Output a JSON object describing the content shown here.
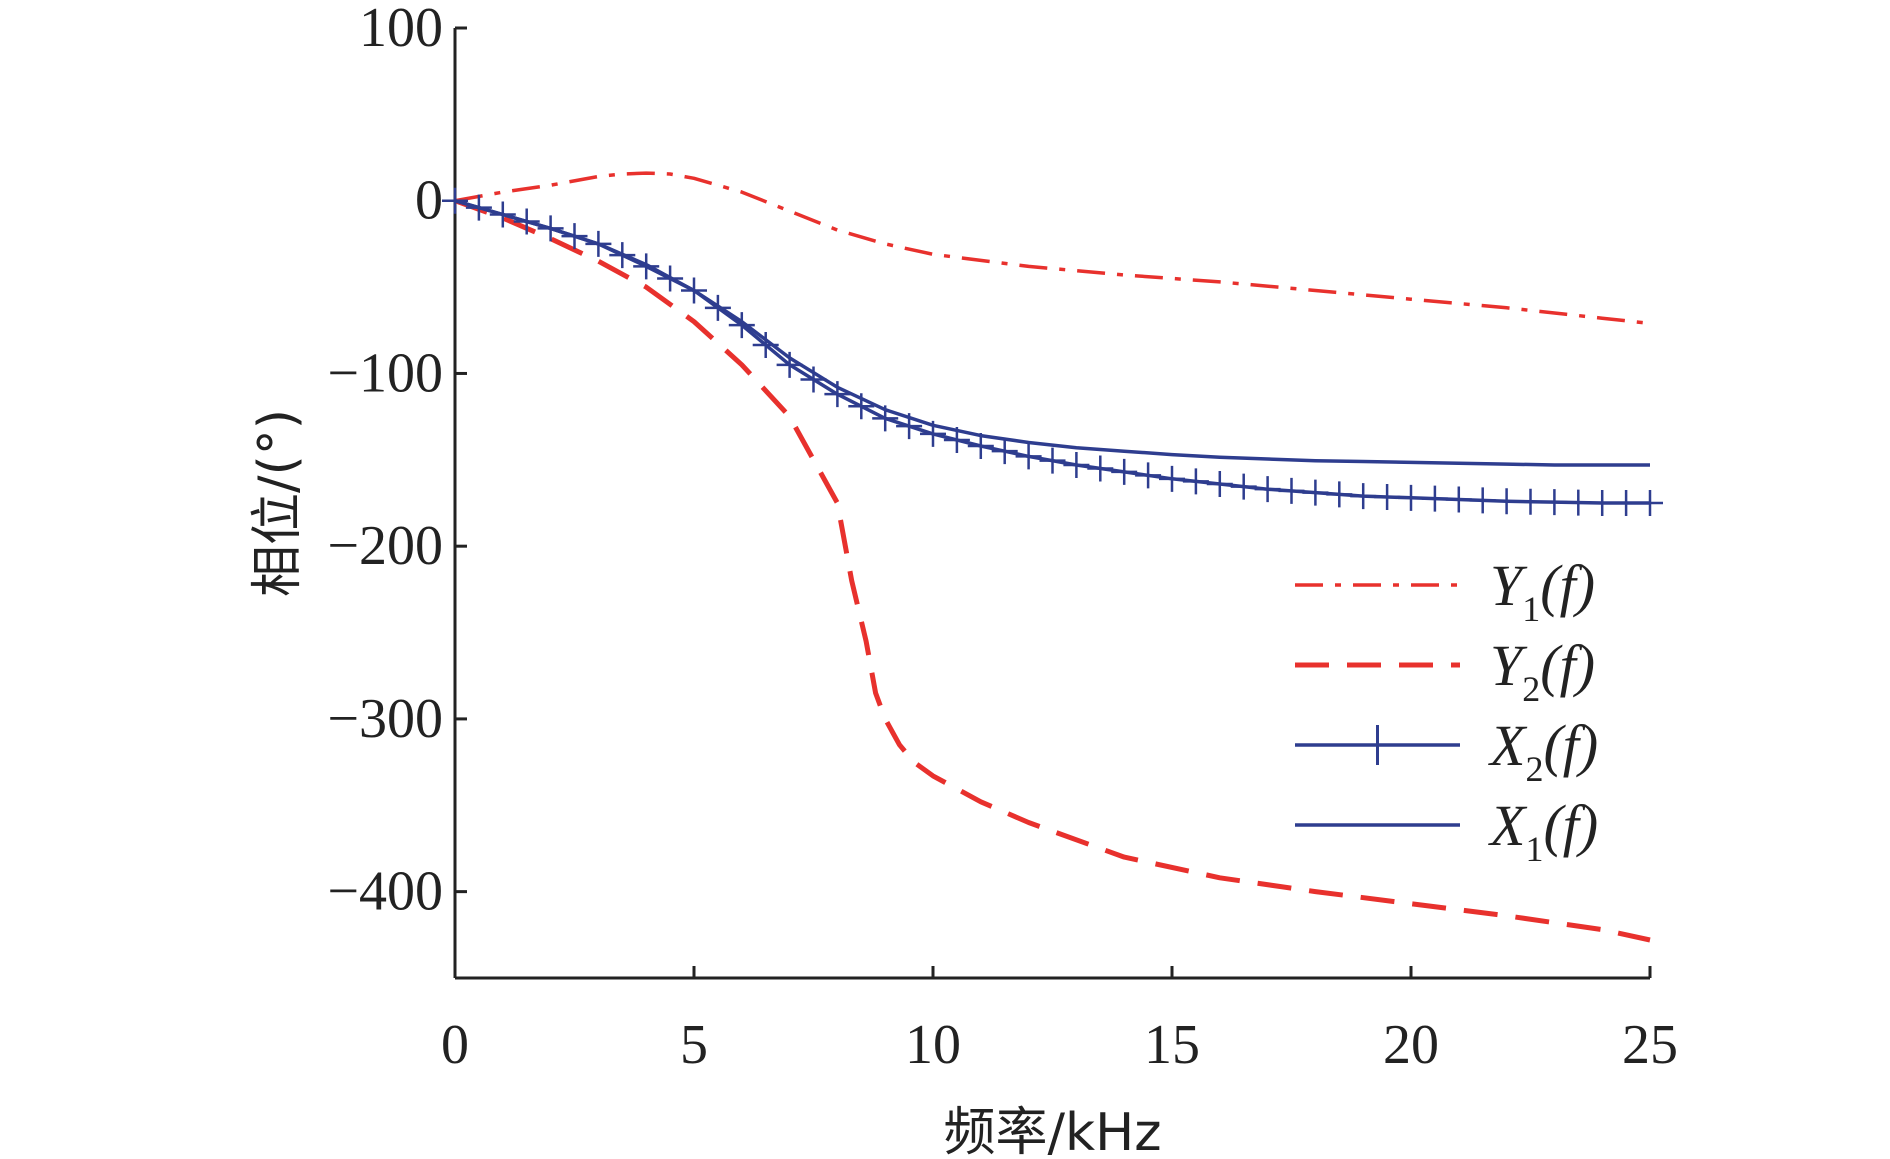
{
  "chart_data": {
    "type": "line",
    "title": "",
    "xlabel": "频率/kHz",
    "ylabel": "相位/(°)",
    "xlim": [
      0,
      25
    ],
    "ylim": [
      -450,
      100
    ],
    "xticks": [
      0,
      5,
      10,
      15,
      20,
      25
    ],
    "yticks": [
      100,
      0,
      -100,
      -200,
      -300,
      -400
    ],
    "xtick_labels": [
      "0",
      "5",
      "10",
      "15",
      "20",
      "25"
    ],
    "ytick_labels": [
      "100",
      "0",
      "−100",
      "−200",
      "−300",
      "−400"
    ],
    "grid": false,
    "legend_position": "right",
    "series": [
      {
        "name": "Y1(f)",
        "label_main": "Y",
        "label_sub": "1",
        "label_rest": "(f)",
        "style": "dashdot",
        "color": "#e8312d",
        "x": [
          0,
          1,
          2,
          3,
          3.5,
          4,
          4.5,
          5,
          6,
          7,
          8,
          9,
          10,
          12,
          14,
          16,
          18,
          20,
          22,
          24,
          25
        ],
        "y": [
          0,
          5,
          9,
          14,
          15.5,
          16,
          15.5,
          13,
          5,
          -6,
          -17,
          -25,
          -31,
          -38,
          -43,
          -47,
          -52,
          -57,
          -62,
          -68,
          -71
        ]
      },
      {
        "name": "Y2(f)",
        "label_main": "Y",
        "label_sub": "2",
        "label_rest": "(f)",
        "style": "dashed",
        "color": "#e8312d",
        "x": [
          0,
          1,
          2,
          3,
          4,
          5,
          6,
          7,
          7.5,
          8,
          8.3,
          8.6,
          8.8,
          9,
          9.3,
          9.6,
          10,
          11,
          12,
          14,
          16,
          18,
          20,
          22,
          24,
          25
        ],
        "y": [
          0,
          -10,
          -22,
          -35,
          -50,
          -70,
          -95,
          -125,
          -150,
          -175,
          -220,
          -255,
          -285,
          -300,
          -315,
          -325,
          -333,
          -348,
          -360,
          -380,
          -392,
          -400,
          -407,
          -414,
          -422,
          -428
        ]
      },
      {
        "name": "X2(f)",
        "label_main": "X",
        "label_sub": "2",
        "label_rest": "(f)",
        "style": "solid-plus",
        "color": "#2e3d8f",
        "x": [
          0,
          1,
          2,
          3,
          4,
          5,
          6,
          7,
          8,
          9,
          10,
          11,
          12,
          13,
          14,
          15,
          16,
          17,
          18,
          19,
          20,
          21,
          22,
          23,
          24,
          25
        ],
        "y": [
          0,
          -8,
          -16,
          -25,
          -38,
          -52,
          -72,
          -95,
          -112,
          -126,
          -135,
          -142,
          -148,
          -153,
          -157,
          -161,
          -164,
          -167,
          -169,
          -171,
          -172,
          -173,
          -174,
          -174.5,
          -175,
          -175
        ]
      },
      {
        "name": "X1(f)",
        "label_main": "X",
        "label_sub": "1",
        "label_rest": "(f)",
        "style": "solid",
        "color": "#2e3d8f",
        "x": [
          0,
          1,
          2,
          3,
          4,
          5,
          6,
          7,
          8,
          9,
          10,
          11,
          12,
          13,
          14,
          15,
          16,
          17,
          18,
          19,
          20,
          21,
          22,
          23,
          24,
          25
        ],
        "y": [
          0,
          -8,
          -16,
          -25,
          -37,
          -52,
          -70,
          -91,
          -108,
          -121,
          -130,
          -136,
          -140,
          -143,
          -145,
          -147,
          -148.5,
          -149.5,
          -150.5,
          -151,
          -151.5,
          -152,
          -152.5,
          -153,
          -153,
          -153
        ]
      }
    ]
  }
}
